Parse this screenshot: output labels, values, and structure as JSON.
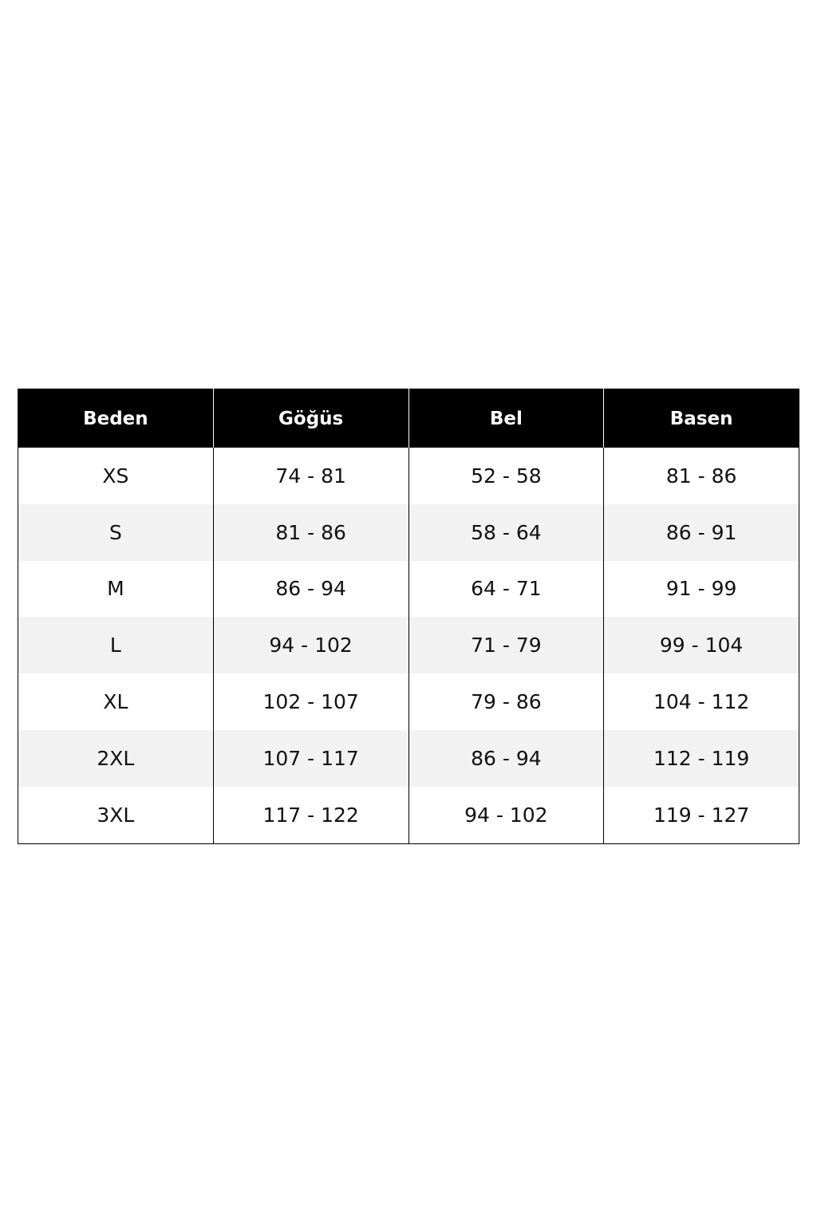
{
  "table": {
    "headers": [
      "Beden",
      "Göğüs",
      "Bel",
      "Basen"
    ],
    "rows": [
      [
        "XS",
        "74 - 81",
        "52 - 58",
        "81 - 86"
      ],
      [
        "S",
        "81 - 86",
        "58 - 64",
        "86 - 91"
      ],
      [
        "M",
        "86 - 94",
        "64 - 71",
        "91 - 99"
      ],
      [
        "L",
        "94 - 102",
        "71 - 79",
        "99 - 104"
      ],
      [
        "XL",
        "102 - 107",
        "79 - 86",
        "104 - 112"
      ],
      [
        "2XL",
        "107 - 117",
        "86 - 94",
        "112 - 119"
      ],
      [
        "3XL",
        "117 - 122",
        "94 - 102",
        "119 - 127"
      ]
    ],
    "colors": {
      "header_bg": "#000000",
      "header_text": "#ffffff",
      "alt_row_bg": "#f2f2f2"
    }
  }
}
